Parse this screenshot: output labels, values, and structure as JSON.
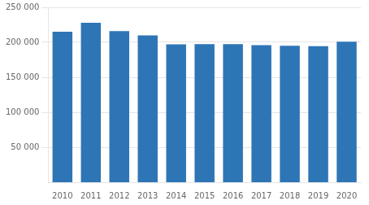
{
  "chart_data": {
    "type": "bar",
    "categories": [
      "2010",
      "2011",
      "2012",
      "2013",
      "2014",
      "2015",
      "2016",
      "2017",
      "2018",
      "2019",
      "2020"
    ],
    "values": [
      215000,
      228000,
      216000,
      210000,
      197000,
      197500,
      197500,
      196000,
      195000,
      194500,
      201000
    ],
    "color": "#2e75b6",
    "ylim": [
      0,
      250000
    ],
    "yticks": [
      {
        "value": 50000,
        "label": "50 000"
      },
      {
        "value": 100000,
        "label": "100 000"
      },
      {
        "value": 150000,
        "label": "150 000"
      },
      {
        "value": 200000,
        "label": "200 000"
      },
      {
        "value": 250000,
        "label": "250 000"
      }
    ],
    "grid": true
  }
}
